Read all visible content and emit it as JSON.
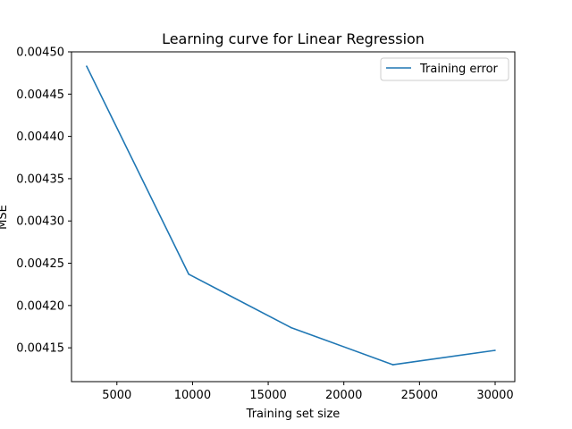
{
  "chart_data": {
    "type": "line",
    "title": "Learning curve for Linear Regression",
    "xlabel": "Training set size",
    "ylabel": "MSE",
    "xlim": [
      2000,
      31300
    ],
    "ylim": [
      0.00411,
      0.0045
    ],
    "xticks": [
      5000,
      10000,
      15000,
      20000,
      25000,
      30000
    ],
    "xtick_labels": [
      "5000",
      "10000",
      "15000",
      "20000",
      "25000",
      "30000"
    ],
    "yticks": [
      0.00415,
      0.0042,
      0.00425,
      0.0043,
      0.00435,
      0.0044,
      0.00445,
      0.0045
    ],
    "ytick_labels": [
      "0.00415",
      "0.00420",
      "0.00425",
      "0.00430",
      "0.00435",
      "0.00440",
      "0.00445",
      "0.00450"
    ],
    "grid": false,
    "legend_position": "top-right",
    "series": [
      {
        "name": "Training error",
        "color": "#1f77b4",
        "x": [
          3000,
          9750,
          16500,
          23250,
          30000
        ],
        "y": [
          0.004483,
          0.004237,
          0.004174,
          0.00413,
          0.004147
        ]
      }
    ]
  }
}
